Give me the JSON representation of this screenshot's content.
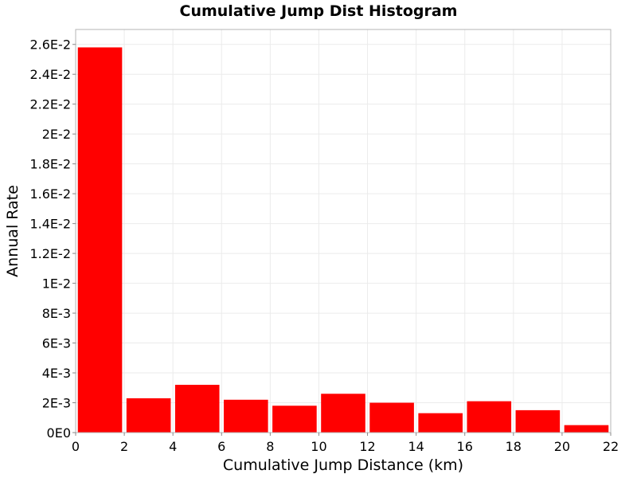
{
  "chart_data": {
    "type": "bar",
    "title": "Cumulative Jump Dist Histogram",
    "xlabel": "Cumulative Jump Distance (km)",
    "ylabel": "Annual Rate",
    "xlim": [
      0,
      22
    ],
    "ylim": [
      0,
      0.027
    ],
    "grid": true,
    "bin_width": 2,
    "x": [
      1,
      3,
      5,
      7,
      9,
      11,
      13,
      15,
      17,
      19,
      21
    ],
    "values": [
      0.0258,
      0.0023,
      0.0032,
      0.0022,
      0.0018,
      0.0026,
      0.002,
      0.0013,
      0.0021,
      0.0015,
      0.0005
    ],
    "x_ticks": [
      0,
      2,
      4,
      6,
      8,
      10,
      12,
      14,
      16,
      18,
      20,
      22
    ],
    "x_tick_labels": [
      "0",
      "2",
      "4",
      "6",
      "8",
      "10",
      "12",
      "14",
      "16",
      "18",
      "20",
      "22"
    ],
    "y_ticks": [
      0,
      0.002,
      0.004,
      0.006,
      0.008,
      0.01,
      0.012,
      0.014,
      0.016,
      0.018,
      0.02,
      0.022,
      0.024,
      0.026
    ],
    "y_tick_labels": [
      "0E0",
      "2E-3",
      "4E-3",
      "6E-3",
      "8E-3",
      "1E-2",
      "1.2E-2",
      "1.4E-2",
      "1.6E-2",
      "1.8E-2",
      "2E-2",
      "2.2E-2",
      "2.4E-2",
      "2.6E-2"
    ],
    "colors": {
      "bar": "#ff0000",
      "grid": "#ebebeb",
      "frame": "#b4b4b4"
    }
  }
}
